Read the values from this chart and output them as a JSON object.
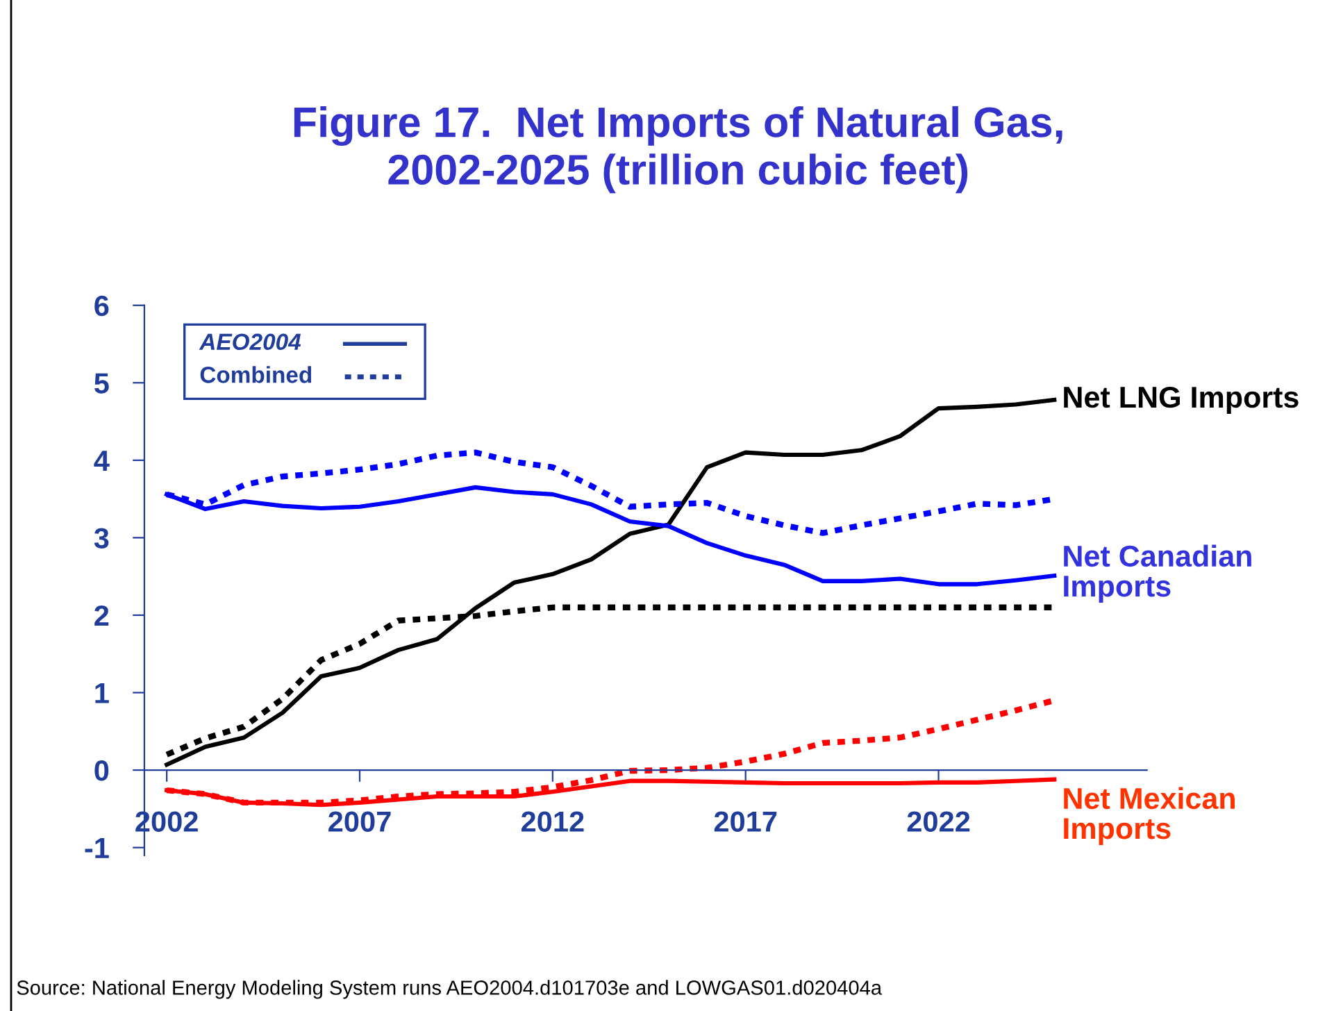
{
  "chart_data": {
    "type": "line",
    "title": "Figure 17.  Net Imports of Natural Gas,\n2002-2025 (trillion cubic feet)",
    "x": [
      2002,
      2003,
      2004,
      2005,
      2006,
      2007,
      2008,
      2009,
      2010,
      2011,
      2012,
      2013,
      2014,
      2015,
      2016,
      2017,
      2018,
      2019,
      2020,
      2021,
      2022,
      2023,
      2024,
      2025
    ],
    "series": [
      {
        "name": "Net LNG Imports",
        "color": "#000000",
        "line_style": "solid",
        "values": [
          0.07,
          0.3,
          0.42,
          0.74,
          1.21,
          1.32,
          1.55,
          1.69,
          2.09,
          2.42,
          2.53,
          2.72,
          3.05,
          3.17,
          3.91,
          4.1,
          4.07,
          4.07,
          4.13,
          4.31,
          4.67,
          4.69,
          4.72,
          4.78
        ]
      },
      {
        "color": "#000000",
        "line_style": "dotted",
        "values": [
          0.2,
          0.41,
          0.56,
          0.92,
          1.42,
          1.63,
          1.93,
          1.96,
          1.99,
          2.05,
          2.1,
          2.1,
          2.1,
          2.1,
          2.1,
          2.1,
          2.1,
          2.1,
          2.1,
          2.1,
          2.1,
          2.1,
          2.1,
          2.1
        ]
      },
      {
        "name": "Net Canadian\nImports",
        "color": "#0000ff",
        "line_style": "solid",
        "values": [
          3.56,
          3.37,
          3.47,
          3.41,
          3.38,
          3.4,
          3.47,
          3.56,
          3.65,
          3.59,
          3.56,
          3.43,
          3.21,
          3.15,
          2.93,
          2.77,
          2.65,
          2.44,
          2.44,
          2.47,
          2.4,
          2.4,
          2.45,
          2.51
        ]
      },
      {
        "color": "#0000ff",
        "line_style": "dotted",
        "values": [
          3.56,
          3.43,
          3.68,
          3.79,
          3.83,
          3.88,
          3.95,
          4.06,
          4.1,
          3.98,
          3.91,
          3.67,
          3.4,
          3.43,
          3.45,
          3.28,
          3.16,
          3.06,
          3.16,
          3.25,
          3.34,
          3.44,
          3.42,
          3.5
        ]
      },
      {
        "name": "Net Mexican\nImports",
        "color": "#ff0000",
        "line_style": "solid",
        "values": [
          -0.26,
          -0.31,
          -0.42,
          -0.43,
          -0.45,
          -0.42,
          -0.38,
          -0.34,
          -0.34,
          -0.34,
          -0.28,
          -0.21,
          -0.14,
          -0.14,
          -0.15,
          -0.16,
          -0.17,
          -0.17,
          -0.17,
          -0.17,
          -0.16,
          -0.16,
          -0.14,
          -0.12
        ]
      },
      {
        "color": "#ff0000",
        "line_style": "dotted",
        "values": [
          -0.26,
          -0.31,
          -0.42,
          -0.42,
          -0.42,
          -0.39,
          -0.34,
          -0.31,
          -0.3,
          -0.28,
          -0.22,
          -0.13,
          -0.01,
          0.0,
          0.03,
          0.11,
          0.21,
          0.35,
          0.38,
          0.42,
          0.53,
          0.65,
          0.77,
          0.9
        ]
      }
    ],
    "xlim": [
      2001.42,
      2027.4
    ],
    "xticks": [
      2002,
      2007,
      2012,
      2017,
      2022
    ],
    "ylim": [
      -1.1,
      6
    ],
    "yticks": [
      -1,
      0,
      1,
      2,
      3,
      4,
      5,
      6
    ],
    "grid": false,
    "legend": "right",
    "annotations": [
      "AEO2004",
      "Combined",
      "Source: National Energy Modeling System runs AEO2004.d101703e and LOWGAS01.d020404a"
    ]
  }
}
